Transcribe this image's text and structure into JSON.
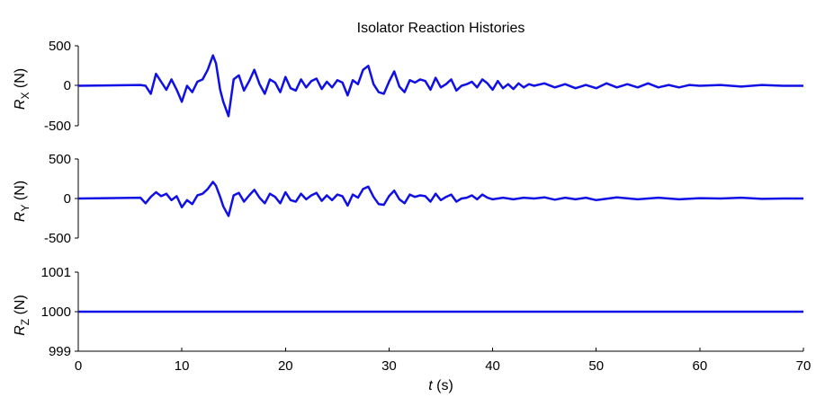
{
  "chart_data": {
    "title": "Isolator Reaction Histories",
    "type": "line",
    "x_axis": {
      "label_var": "t",
      "label_unit": " (s)",
      "range": [
        0,
        70
      ],
      "ticks": [
        0,
        10,
        20,
        30,
        40,
        50,
        60,
        70
      ],
      "tick_labels": [
        "0",
        "10",
        "20",
        "30",
        "40",
        "50",
        "60",
        "70"
      ]
    },
    "color": "#1010e6",
    "panels": [
      {
        "id": "rx",
        "ylabel_main": "R",
        "ylabel_sub": "X",
        "ylabel_unit": " (N)",
        "ylim": [
          -500,
          500
        ],
        "yticks": [
          500,
          0,
          -500
        ],
        "ytick_labels": [
          "500",
          "0",
          "-500"
        ],
        "x": [
          0,
          6.0,
          6.5,
          7.0,
          7.5,
          8.0,
          8.5,
          9.0,
          9.5,
          10.0,
          10.5,
          11.0,
          11.5,
          12.0,
          12.5,
          13.0,
          13.3,
          13.7,
          14.0,
          14.5,
          15.0,
          15.5,
          16.0,
          16.5,
          17.0,
          17.5,
          18.0,
          18.5,
          19.0,
          19.5,
          20.0,
          20.5,
          21.0,
          21.5,
          22.0,
          22.5,
          23.0,
          23.5,
          24.0,
          24.5,
          25.0,
          25.5,
          26.0,
          26.5,
          27.0,
          27.5,
          28.0,
          28.5,
          29.0,
          29.5,
          30.0,
          30.5,
          31.0,
          31.5,
          32.0,
          32.5,
          33.0,
          33.5,
          34.0,
          34.5,
          35.0,
          35.5,
          36.0,
          36.5,
          37.0,
          37.5,
          38.0,
          38.5,
          39.0,
          39.5,
          40.0,
          40.5,
          41.0,
          41.5,
          42.0,
          42.5,
          43.0,
          43.5,
          44.0,
          45.0,
          46.0,
          47.0,
          48.0,
          49.0,
          50.0,
          51.0,
          52.0,
          53.0,
          54.0,
          55.0,
          56.0,
          57.0,
          58.0,
          59.0,
          60.0,
          62.0,
          64.0,
          66.0,
          68.0,
          70.0
        ],
        "y": [
          0,
          10,
          0,
          -100,
          150,
          50,
          -50,
          80,
          -50,
          -200,
          0,
          -80,
          50,
          80,
          200,
          380,
          280,
          -50,
          -200,
          -380,
          80,
          130,
          -60,
          60,
          200,
          20,
          -100,
          80,
          40,
          -80,
          110,
          -30,
          -60,
          80,
          -20,
          60,
          90,
          -40,
          50,
          -20,
          70,
          40,
          -120,
          70,
          20,
          200,
          250,
          20,
          -80,
          -100,
          50,
          180,
          -10,
          -80,
          70,
          40,
          80,
          60,
          -50,
          100,
          -20,
          20,
          80,
          -60,
          0,
          20,
          50,
          -20,
          80,
          30,
          -50,
          60,
          -30,
          20,
          -40,
          30,
          -20,
          20,
          0,
          30,
          -20,
          20,
          -30,
          10,
          -30,
          30,
          -20,
          20,
          -20,
          30,
          -20,
          10,
          -20,
          10,
          0,
          10,
          -10,
          10,
          0,
          0
        ]
      },
      {
        "id": "ry",
        "ylabel_main": "R",
        "ylabel_sub": "Y",
        "ylabel_unit": " (N)",
        "ylim": [
          -500,
          500
        ],
        "yticks": [
          500,
          0,
          -500
        ],
        "ytick_labels": [
          "500",
          "0",
          "-500"
        ],
        "x": [
          0,
          6.0,
          6.5,
          7.0,
          7.5,
          8.0,
          8.5,
          9.0,
          9.5,
          10.0,
          10.5,
          11.0,
          11.5,
          12.0,
          12.5,
          13.0,
          13.3,
          13.7,
          14.0,
          14.5,
          15.0,
          15.5,
          16.0,
          16.5,
          17.0,
          17.5,
          18.0,
          18.5,
          19.0,
          19.5,
          20.0,
          20.5,
          21.0,
          21.5,
          22.0,
          22.5,
          23.0,
          23.5,
          24.0,
          24.5,
          25.0,
          25.5,
          26.0,
          26.5,
          27.0,
          27.5,
          28.0,
          28.5,
          29.0,
          29.5,
          30.0,
          30.5,
          31.0,
          31.5,
          32.0,
          32.5,
          33.0,
          33.5,
          34.0,
          34.5,
          35.0,
          35.5,
          36.0,
          36.5,
          37.0,
          37.5,
          38.0,
          38.5,
          39.0,
          39.5,
          40.0,
          41.0,
          42.0,
          43.0,
          44.0,
          45.0,
          46.0,
          47.0,
          48.0,
          49.0,
          50.0,
          52.0,
          54.0,
          56.0,
          58.0,
          60.0,
          62.0,
          64.0,
          66.0,
          68.0,
          70.0
        ],
        "y": [
          0,
          10,
          -60,
          20,
          80,
          30,
          60,
          -20,
          30,
          -110,
          -20,
          -70,
          40,
          60,
          120,
          210,
          160,
          20,
          -100,
          -220,
          40,
          70,
          -40,
          40,
          110,
          10,
          -60,
          60,
          20,
          -60,
          80,
          -20,
          -40,
          60,
          -10,
          40,
          70,
          -30,
          40,
          -20,
          50,
          30,
          -90,
          50,
          10,
          120,
          150,
          20,
          -70,
          -80,
          30,
          100,
          -10,
          -60,
          50,
          20,
          40,
          30,
          -40,
          60,
          -20,
          20,
          50,
          -40,
          0,
          10,
          40,
          -10,
          50,
          10,
          -10,
          10,
          -10,
          10,
          0,
          15,
          -15,
          10,
          -10,
          10,
          -20,
          15,
          -10,
          10,
          -10,
          5,
          0,
          10,
          -5,
          0,
          0
        ]
      },
      {
        "id": "rz",
        "ylabel_main": "R",
        "ylabel_sub": "Z",
        "ylabel_unit": " (N)",
        "ylim": [
          999,
          1001
        ],
        "yticks": [
          1001,
          1000,
          999
        ],
        "ytick_labels": [
          "1001",
          "1000",
          "999"
        ],
        "x": [
          0,
          70
        ],
        "y": [
          1000,
          1000
        ]
      }
    ]
  }
}
